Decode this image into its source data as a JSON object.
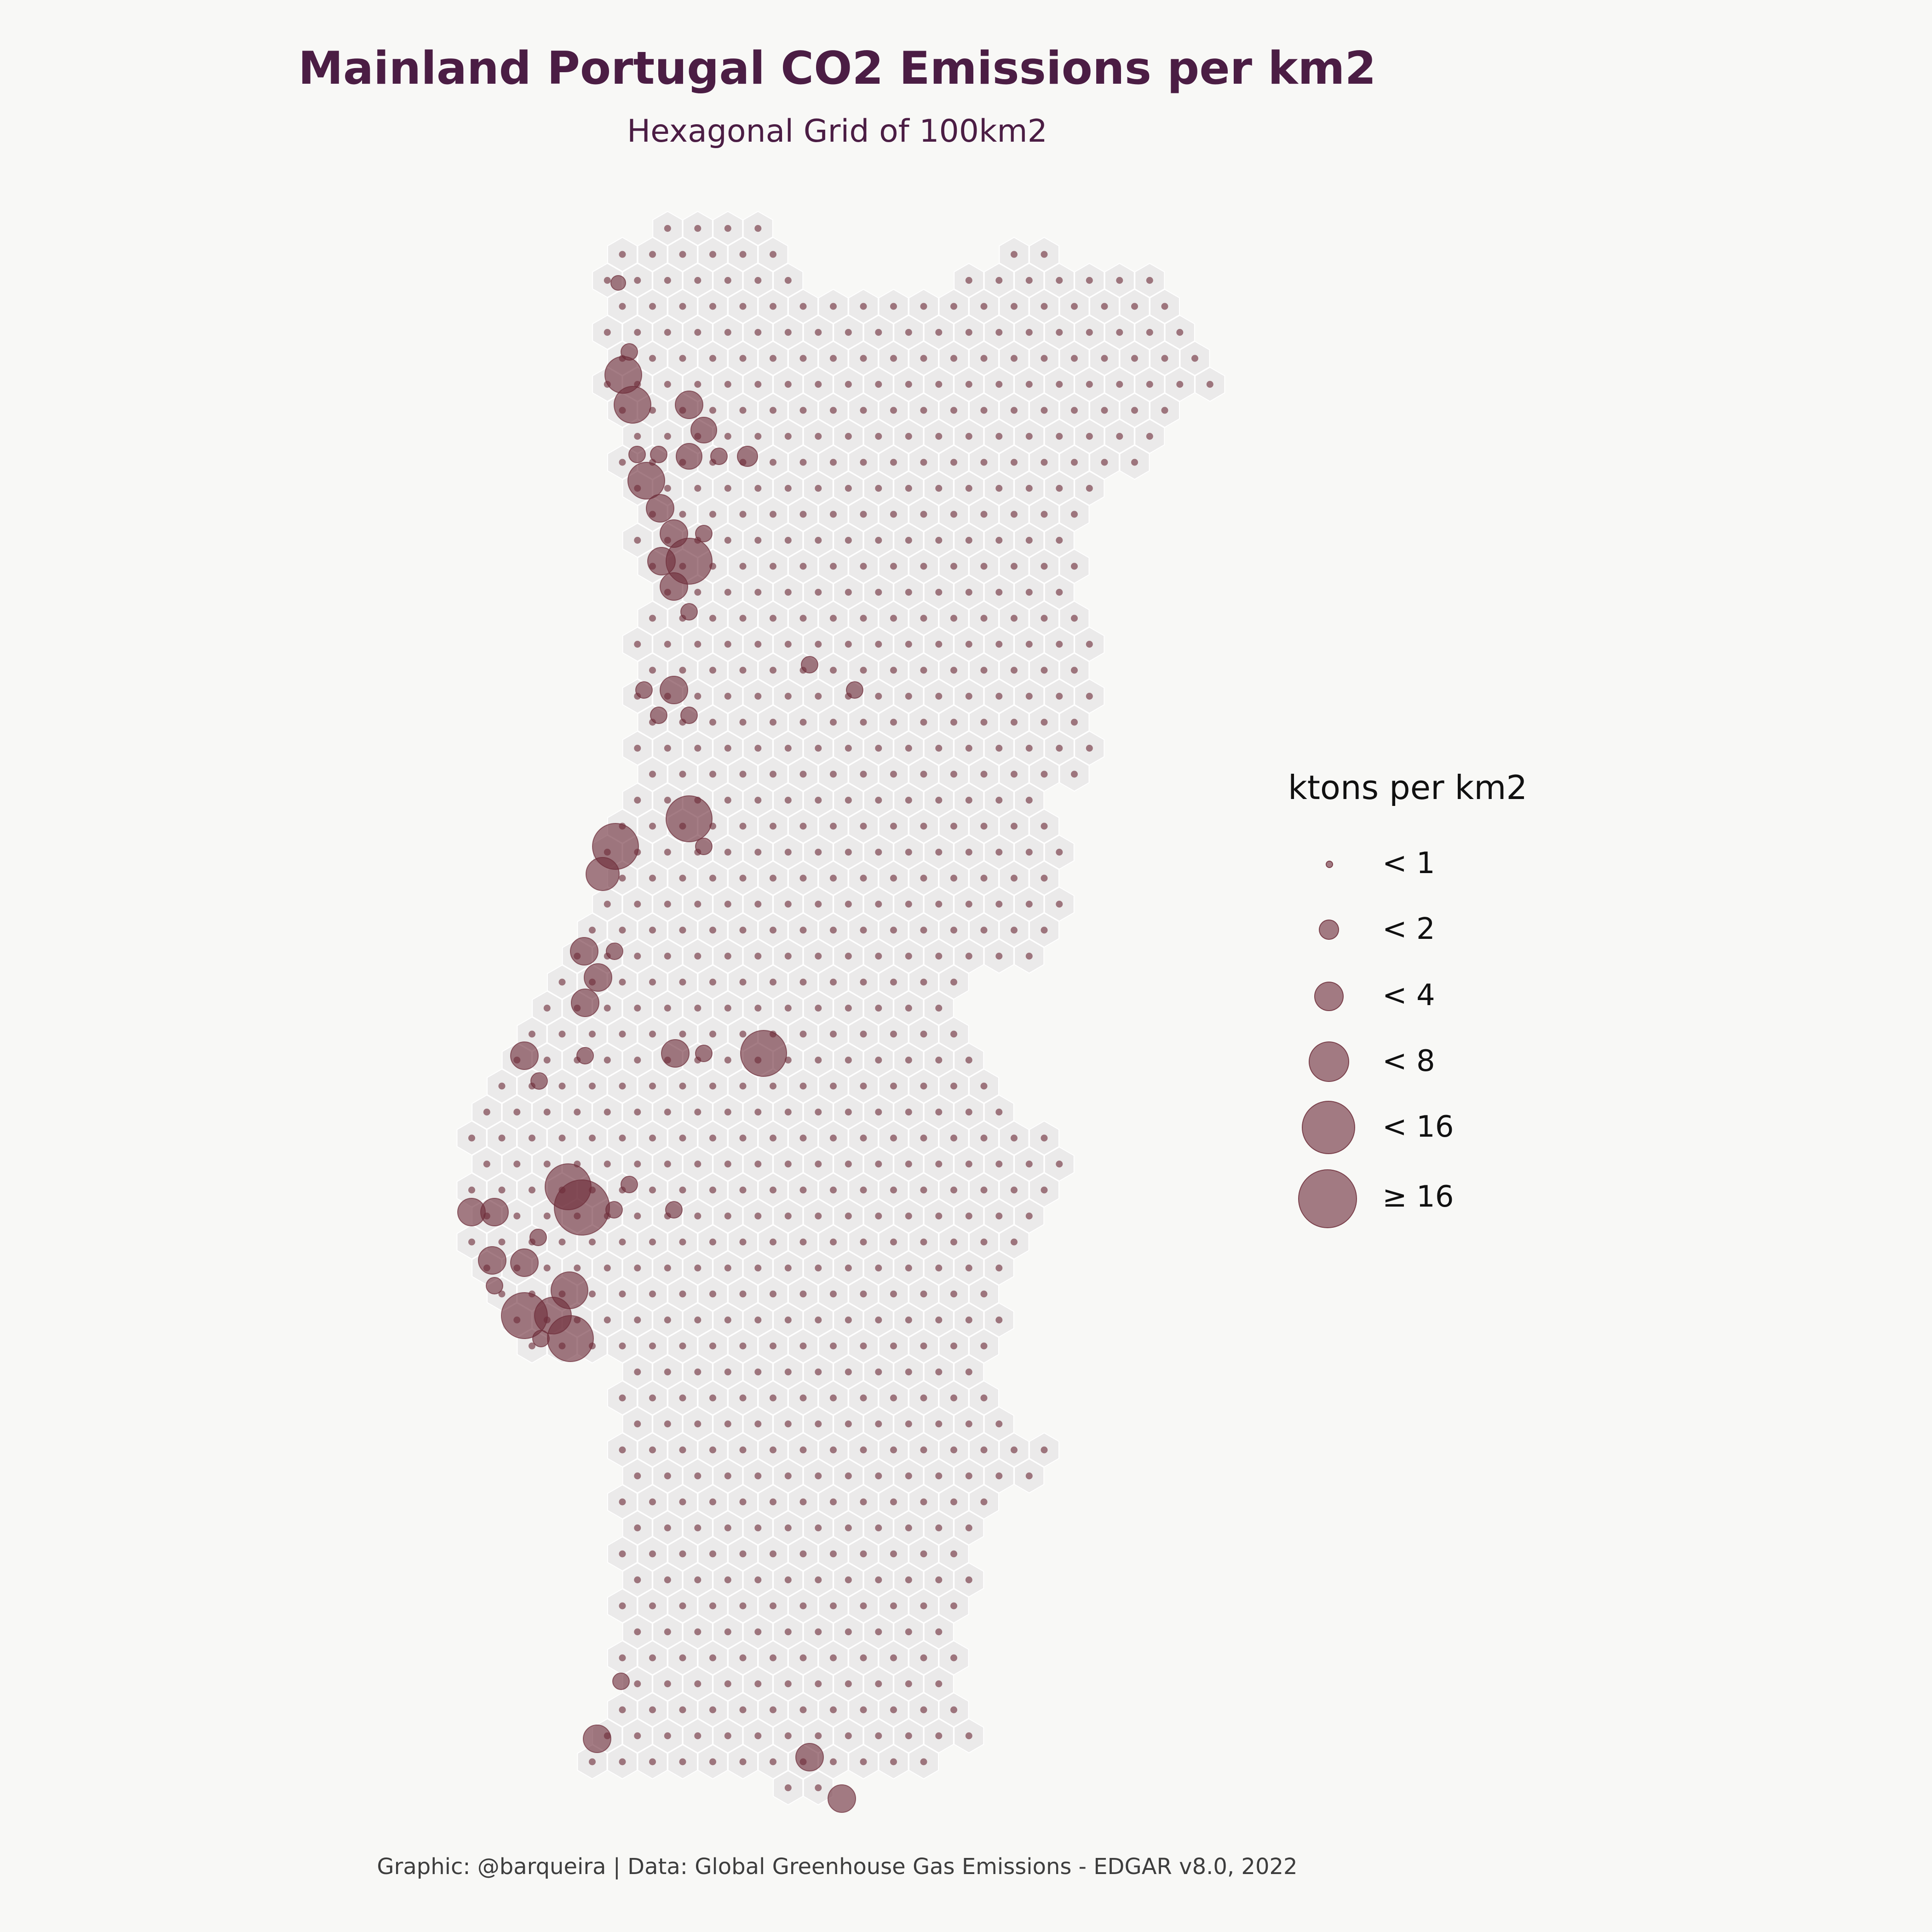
{
  "title": "Mainland Portugal CO2 Emissions per km2",
  "subtitle": "Hexagonal Grid of 100km2",
  "caption": "Graphic: @barqueira | Data: Global Greenhouse Gas Emissions - EDGAR v8.0, 2022",
  "colors": {
    "background": "#f8f8f6",
    "land_hex": "#ebeaea",
    "hex_border": "#ffffff",
    "bubble": "#6d2d3a",
    "title": "#4b1d44"
  },
  "legend": {
    "title": "ktons per km2",
    "items": [
      {
        "label": "< 1"
      },
      {
        "label": "< 2"
      },
      {
        "label": "< 4"
      },
      {
        "label": "< 8"
      },
      {
        "label": "< 16"
      },
      {
        "label": "≥ 16"
      }
    ]
  }
}
